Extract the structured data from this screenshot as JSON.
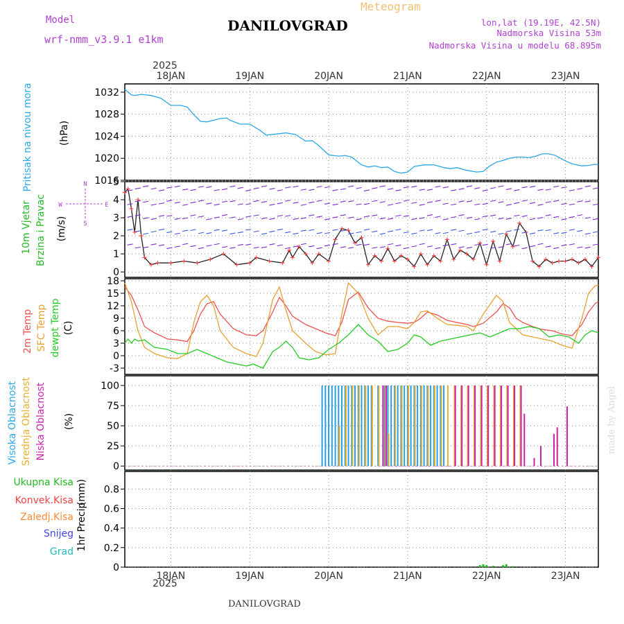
{
  "header": {
    "location_title": "DANILOVGRAD",
    "chart_title": "Meteogram",
    "model_label": "Model",
    "model_name": "wrf-nmm_v3.9.1  e1km",
    "coords": "lon,lat (19.19E, 42.5N)",
    "elevation": "Nadmorska Visina 53m",
    "model_elevation": "Nadmorska Visina u modelu 68.895m",
    "footer_location": "DANILOVGRAD",
    "credit": "made by Angel"
  },
  "time_axis": {
    "year": "2025",
    "top_labels": [
      "18JAN",
      "19JAN",
      "20JAN",
      "21JAN",
      "22JAN",
      "23JAN"
    ],
    "bottom_labels": [
      "18JAN",
      "19JAN",
      "20JAN",
      "21JAN",
      "22JAN",
      "23JAN"
    ]
  },
  "colors": {
    "pressure": "#2aa7e8",
    "wind_speed": "#222222",
    "wind_markers": "#ff3333",
    "t2m": "#ee5050",
    "sfc_temp": "#e8a030",
    "dewpoint": "#22cc22",
    "high_cloud": "#2a9ee0",
    "mid_cloud": "#e8b030",
    "low_cloud": "#cc22aa",
    "total_precip": "#22bb22",
    "conv_precip": "#ee4444",
    "frozen_precip": "#ff8833",
    "snow": "#4444ee",
    "hail": "#22bbbb",
    "purple_label": "#b040d0",
    "brand_orange": "#f0c070"
  },
  "chart_data": [
    {
      "type": "line",
      "panel": "pressure",
      "ylabel_main": "Pritisak na nivou mora",
      "ylabel_unit": "(hPa)",
      "yticks": [
        "1032",
        "1028",
        "1024",
        "1020",
        "1016"
      ],
      "ylim": [
        1016,
        1033.5
      ],
      "xlim": [
        0,
        144
      ],
      "series": [
        {
          "x": [
            0,
            2,
            3,
            5,
            8,
            11,
            14,
            17,
            19,
            21,
            23,
            25,
            27,
            29,
            31,
            32,
            35,
            38,
            41,
            43,
            46,
            49,
            52,
            55,
            57,
            59,
            62,
            65,
            67,
            69,
            72,
            74,
            76,
            78,
            80,
            82,
            84,
            86,
            88,
            91,
            94,
            97,
            99,
            101,
            104,
            107,
            109,
            111,
            113,
            115,
            117,
            119,
            121,
            123,
            125,
            127,
            129,
            131,
            133,
            136,
            139,
            141,
            143,
            144
          ],
          "y": [
            1032.5,
            1031.5,
            1031.4,
            1031.6,
            1031.4,
            1030.9,
            1029.6,
            1029.6,
            1029.3,
            1027.9,
            1026.7,
            1026.6,
            1026.9,
            1027.2,
            1027.3,
            1026.9,
            1026.2,
            1026.2,
            1025.1,
            1024.2,
            1024.4,
            1024.6,
            1024.3,
            1023.1,
            1023.2,
            1022.3,
            1020.6,
            1020.4,
            1020.5,
            1020.2,
            1018.8,
            1018.4,
            1018.6,
            1018.3,
            1018.4,
            1017.6,
            1017.3,
            1017.5,
            1018.5,
            1018.8,
            1018.8,
            1018.3,
            1018.1,
            1018.3,
            1017.8,
            1017.5,
            1017.6,
            1018.6,
            1019.3,
            1019.6,
            1020.0,
            1020.2,
            1020.2,
            1020.1,
            1020.4,
            1020.8,
            1020.8,
            1020.5,
            1019.8,
            1019.0,
            1018.6,
            1018.7,
            1018.9,
            1018.8
          ]
        }
      ]
    },
    {
      "type": "line",
      "panel": "wind",
      "ylabel_main": "10m Vjetar",
      "ylabel_sub": "Brzina i Pravac",
      "ylabel_unit": "(m/s)",
      "compass": {
        "n": "N",
        "s": "S",
        "w": "W",
        "e": "E"
      },
      "yticks": [
        "5",
        "4",
        "3",
        "2",
        "1",
        "0"
      ],
      "ylim": [
        -0.3,
        5
      ],
      "xlim": [
        0,
        144
      ],
      "series": [
        {
          "x": [
            0,
            1,
            2,
            3,
            4,
            5,
            6,
            8,
            10,
            14,
            18,
            22,
            26,
            30,
            34,
            38,
            40,
            44,
            48,
            50,
            51,
            53,
            55,
            57,
            59,
            62,
            64,
            66,
            68,
            70,
            72,
            74,
            76,
            78,
            80,
            82,
            84,
            86,
            88,
            90,
            92,
            94,
            96,
            98,
            100,
            102,
            104,
            106,
            108,
            110,
            112,
            114,
            116,
            118,
            120,
            122,
            124,
            126,
            128,
            130,
            132,
            134,
            136,
            138,
            140,
            142,
            144
          ],
          "y": [
            4.4,
            4.6,
            3.5,
            2.2,
            4.0,
            2.0,
            0.8,
            0.4,
            0.5,
            0.5,
            0.6,
            0.5,
            0.7,
            1.0,
            0.4,
            0.5,
            0.8,
            0.6,
            0.5,
            1.2,
            0.8,
            1.4,
            1.0,
            0.5,
            1.0,
            0.6,
            1.8,
            2.4,
            2.3,
            1.6,
            1.9,
            0.4,
            0.9,
            0.6,
            1.3,
            0.6,
            0.9,
            0.7,
            0.3,
            1.0,
            0.4,
            0.9,
            0.6,
            1.8,
            0.7,
            1.2,
            1.0,
            0.7,
            1.6,
            0.4,
            1.7,
            0.6,
            2.1,
            1.4,
            2.7,
            2.2,
            0.6,
            0.3,
            0.7,
            0.5,
            0.6,
            0.6,
            0.7,
            0.5,
            0.7,
            0.3,
            0.8
          ]
        }
      ]
    },
    {
      "type": "line",
      "panel": "temperature",
      "ylabel_main": "2m Temp",
      "ylabel_sub": "SFC Temp",
      "ylabel_sub2": "dewpt Temp",
      "ylabel_unit": "(C)",
      "yticks": [
        "18",
        "15",
        "12",
        "9",
        "6",
        "3",
        "0",
        "-3"
      ],
      "ylim": [
        -4.5,
        18.5
      ],
      "xlim": [
        0,
        144
      ],
      "series": [
        {
          "name": "2m Temp",
          "x": [
            0,
            2,
            4,
            6,
            9,
            13,
            16,
            19,
            21,
            23,
            25,
            27,
            29,
            33,
            37,
            40,
            42,
            45,
            47,
            49,
            51,
            55,
            58,
            61,
            64,
            66,
            68,
            71,
            74,
            77,
            80,
            83,
            86,
            88,
            90,
            92,
            95,
            98,
            101,
            104,
            106,
            109,
            113,
            115,
            117,
            119,
            121,
            124,
            127,
            130,
            133,
            136,
            139,
            141,
            143,
            144
          ],
          "y": [
            16.5,
            14.5,
            11.0,
            7.0,
            5.5,
            4.0,
            3.8,
            3.4,
            6.0,
            10.0,
            12.5,
            13.0,
            10.0,
            6.5,
            5.0,
            4.8,
            6.0,
            10.5,
            14.0,
            12.0,
            9.5,
            7.5,
            6.5,
            5.5,
            4.8,
            8.0,
            13.5,
            15.3,
            11.5,
            9.0,
            8.3,
            8.0,
            7.8,
            8.0,
            9.0,
            10.5,
            9.8,
            8.5,
            8.0,
            7.5,
            7.0,
            7.8,
            10.5,
            12.5,
            11.5,
            9.0,
            8.0,
            7.0,
            6.3,
            6.0,
            5.2,
            4.8,
            7.5,
            10.5,
            12.5,
            13.0
          ]
        },
        {
          "name": "SFC Temp",
          "x": [
            0,
            2,
            4,
            6,
            9,
            13,
            16,
            19,
            21,
            23,
            25,
            27,
            29,
            33,
            37,
            40,
            42,
            45,
            47,
            49,
            51,
            55,
            58,
            61,
            64,
            66,
            68,
            71,
            74,
            77,
            80,
            83,
            86,
            88,
            90,
            92,
            95,
            98,
            101,
            104,
            106,
            109,
            113,
            115,
            117,
            119,
            121,
            124,
            127,
            130,
            133,
            136,
            139,
            141,
            143,
            144
          ],
          "y": [
            17.5,
            13.0,
            6.0,
            2.0,
            0.5,
            -0.5,
            -0.7,
            0.5,
            8.0,
            13.0,
            14.5,
            12.0,
            6.0,
            2.0,
            0.5,
            -0.2,
            3.0,
            13.5,
            16.5,
            11.0,
            6.0,
            3.0,
            1.0,
            0.2,
            0.5,
            10.0,
            17.5,
            15.0,
            9.0,
            5.0,
            7.0,
            7.0,
            6.5,
            8.0,
            10.5,
            10.8,
            9.0,
            7.5,
            7.3,
            7.0,
            6.0,
            10.0,
            14.5,
            13.0,
            8.0,
            6.5,
            5.0,
            4.5,
            4.0,
            3.5,
            2.5,
            1.8,
            9.0,
            15.0,
            16.8,
            17.0
          ]
        },
        {
          "name": "dewpt Temp",
          "x": [
            0,
            1,
            2,
            3,
            4,
            6,
            9,
            13,
            16,
            19,
            22,
            25,
            28,
            31,
            34,
            37,
            39,
            42,
            45,
            47,
            49,
            51,
            53,
            56,
            59,
            62,
            65,
            68,
            71,
            74,
            77,
            80,
            83,
            86,
            88,
            90,
            93,
            96,
            99,
            102,
            105,
            108,
            111,
            114,
            117,
            120,
            123,
            126,
            129,
            132,
            135,
            138,
            140,
            142,
            144
          ],
          "y": [
            3.0,
            4.0,
            3.0,
            4.0,
            3.5,
            3.8,
            2.0,
            1.5,
            0.5,
            0.5,
            1.5,
            0.5,
            -0.5,
            -1.5,
            -2.0,
            -2.5,
            -2.0,
            -3.0,
            1.0,
            2.0,
            3.5,
            2.0,
            -0.5,
            -1.0,
            -0.5,
            1.5,
            3.0,
            5.0,
            7.5,
            5.0,
            3.5,
            1.0,
            1.5,
            3.0,
            5.0,
            4.5,
            2.5,
            3.5,
            4.0,
            4.5,
            5.0,
            5.5,
            4.5,
            5.5,
            6.5,
            6.5,
            7.0,
            6.5,
            4.5,
            5.0,
            4.5,
            3.0,
            5.0,
            6.0,
            5.5
          ]
        }
      ]
    },
    {
      "type": "bar",
      "panel": "cloud_cover",
      "ylabel_main": "Visoka Oblacnost",
      "ylabel_sub": "Srednja Oblacnost",
      "ylabel_sub2": "Niska Oblacnost",
      "ylabel_unit": "(%)",
      "yticks": [
        "100",
        "75",
        "50",
        "25",
        "0"
      ],
      "ylim": [
        -5,
        112
      ],
      "xlim": [
        0,
        144
      ],
      "series": [
        {
          "name": "Visoka Oblacnost",
          "x": [
            60,
            61,
            62,
            63,
            64,
            65,
            66,
            67,
            68,
            69,
            70,
            71,
            72,
            73,
            74,
            75,
            77,
            79,
            80,
            81,
            82,
            83,
            84,
            85,
            86,
            87,
            88,
            89,
            90,
            91,
            92,
            93,
            94,
            95,
            96,
            97,
            106
          ],
          "y": [
            100,
            100,
            100,
            100,
            100,
            100,
            100,
            100,
            100,
            100,
            100,
            100,
            100,
            100,
            100,
            100,
            100,
            100,
            100,
            100,
            100,
            100,
            100,
            100,
            100,
            100,
            100,
            100,
            100,
            100,
            100,
            100,
            100,
            100,
            100,
            100,
            0
          ]
        },
        {
          "name": "Srednja Oblacnost",
          "x": [
            65,
            67,
            69,
            71,
            73,
            75,
            77,
            79,
            80,
            82,
            84,
            86,
            88,
            90,
            92,
            94,
            96,
            98,
            100,
            102,
            104,
            106,
            108,
            110,
            112,
            114,
            116,
            118,
            120
          ],
          "y": [
            50,
            100,
            100,
            100,
            100,
            100,
            100,
            100,
            40,
            100,
            100,
            100,
            100,
            100,
            100,
            100,
            100,
            100,
            100,
            100,
            100,
            100,
            100,
            100,
            100,
            100,
            100,
            100,
            100
          ]
        },
        {
          "name": "Niska Oblacnost",
          "x": [
            78,
            79,
            80,
            82,
            84,
            86,
            88,
            90,
            92,
            94,
            96,
            98,
            100,
            102,
            104,
            106,
            108,
            110,
            112,
            114,
            116,
            118,
            120,
            121,
            124,
            126,
            130,
            131,
            134
          ],
          "y": [
            100,
            100,
            0,
            0,
            0,
            0,
            0,
            0,
            0,
            0,
            0,
            0,
            100,
            100,
            100,
            100,
            100,
            100,
            100,
            100,
            100,
            100,
            100,
            65,
            10,
            25,
            40,
            48,
            74
          ]
        }
      ]
    },
    {
      "type": "bar",
      "panel": "precipitation",
      "ylabel_main": "1hr Precip",
      "ylabel_unit": "(mm)",
      "legend": [
        "Ukupna Kisa",
        "Konvek.Kisa",
        "Zaledj.Kisa",
        "Snijeg",
        "Grad"
      ],
      "yticks": [
        "0.8",
        "0.6",
        "0.4",
        "0.2",
        "0"
      ],
      "ylim": [
        0,
        0.98
      ],
      "xlim": [
        0,
        144
      ],
      "series": [
        {
          "name": "Ukupna Kisa",
          "x": [
            108,
            109,
            110,
            112,
            115,
            116,
            118
          ],
          "y": [
            0.02,
            0.03,
            0.02,
            0.015,
            0.02,
            0.03,
            0.01
          ]
        }
      ]
    }
  ]
}
